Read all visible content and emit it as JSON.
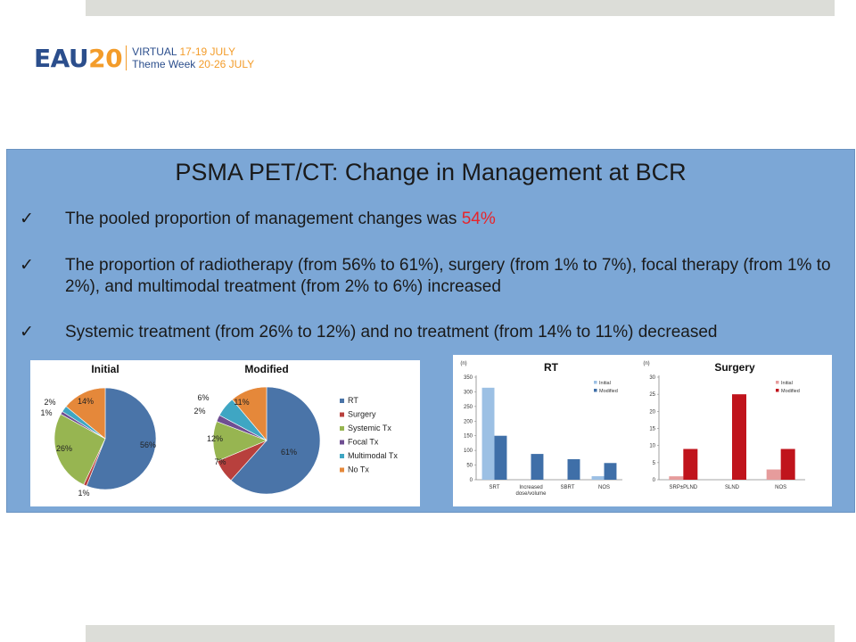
{
  "header": {
    "logo_eau": "EAU",
    "logo_num": "20",
    "logo_line1_prefix": "VIRTUAL ",
    "logo_line1_dates": "17-19 JULY",
    "logo_line2_prefix": "Theme Week ",
    "logo_line2_dates": "20-26 JULY"
  },
  "slide": {
    "title": "PSMA PET/CT: Change in Management at BCR",
    "check_glyph": "✓",
    "bullets": {
      "b1_text": "The pooled proportion of management changes was ",
      "b1_highlight": "54%",
      "b2_text": "The proportion of radiotherapy (from 56% to 61%), surgery (from 1% to 7%), focal therapy (from 1% to 2%), and multimodal treatment (from 2% to 6%) increased",
      "b3_text": "Systemic treatment (from 26% to 12%) and no treatment (from 14% to 11%) decreased"
    }
  },
  "colors": {
    "rt": "#4a74a8",
    "surgery": "#b8403d",
    "systemic": "#97b551",
    "focal": "#6f4e92",
    "multimodal": "#3fa6c3",
    "notx": "#e5883a",
    "rt_initial": "#9cc0e4",
    "rt_modified": "#3f6fa8",
    "surg_initial": "#e69c9c",
    "surg_modified": "#c0141c"
  },
  "chart_data": [
    {
      "type": "pie",
      "title": "Initial",
      "categories": [
        "RT",
        "Surgery",
        "Systemic Tx",
        "Focal Tx",
        "Multimodal Tx",
        "No Tx"
      ],
      "values": [
        56,
        1,
        26,
        1,
        2,
        14
      ],
      "labels": [
        "56%",
        "1%",
        "26%",
        "1%",
        "2%",
        "14%"
      ]
    },
    {
      "type": "pie",
      "title": "Modified",
      "categories": [
        "RT",
        "Surgery",
        "Systemic Tx",
        "Focal Tx",
        "Multimodal Tx",
        "No Tx"
      ],
      "values": [
        61,
        7,
        12,
        2,
        6,
        11
      ],
      "labels": [
        "61%",
        "7%",
        "12%",
        "2%",
        "6%",
        "11%"
      ],
      "legend": [
        "RT",
        "Surgery",
        "Systemic Tx",
        "Focal Tx",
        "Multimodal Tx",
        "No Tx"
      ],
      "legend_position": "right"
    },
    {
      "type": "bar",
      "title": "RT",
      "ylabel": "(n)",
      "categories": [
        "SRT",
        "Increased dose/volume",
        "SBRT",
        "NOS"
      ],
      "category_lines": [
        [
          "SRT"
        ],
        [
          "Increased",
          "dose/volume"
        ],
        [
          "SBRT"
        ],
        [
          "NOS"
        ]
      ],
      "series": [
        {
          "name": "Initial",
          "values": [
            314,
            0,
            0,
            12
          ]
        },
        {
          "name": "Modified",
          "values": [
            150,
            88,
            70,
            57
          ]
        }
      ],
      "ylim": [
        0,
        350
      ],
      "yticks": [
        0,
        50,
        100,
        150,
        200,
        250,
        300,
        350
      ],
      "legend_position": "top-right"
    },
    {
      "type": "bar",
      "title": "Surgery",
      "ylabel": "(n)",
      "categories": [
        "SRP±PLND",
        "SLND",
        "NOS"
      ],
      "category_lines": [
        [
          "SRP±PLND"
        ],
        [
          "SLND"
        ],
        [
          "NOS"
        ]
      ],
      "series": [
        {
          "name": "Initial",
          "values": [
            1,
            0,
            3
          ]
        },
        {
          "name": "Modified",
          "values": [
            9,
            25,
            9
          ]
        }
      ],
      "ylim": [
        0,
        30
      ],
      "yticks": [
        0,
        5,
        10,
        15,
        20,
        25,
        30
      ],
      "legend_position": "top-right"
    }
  ]
}
